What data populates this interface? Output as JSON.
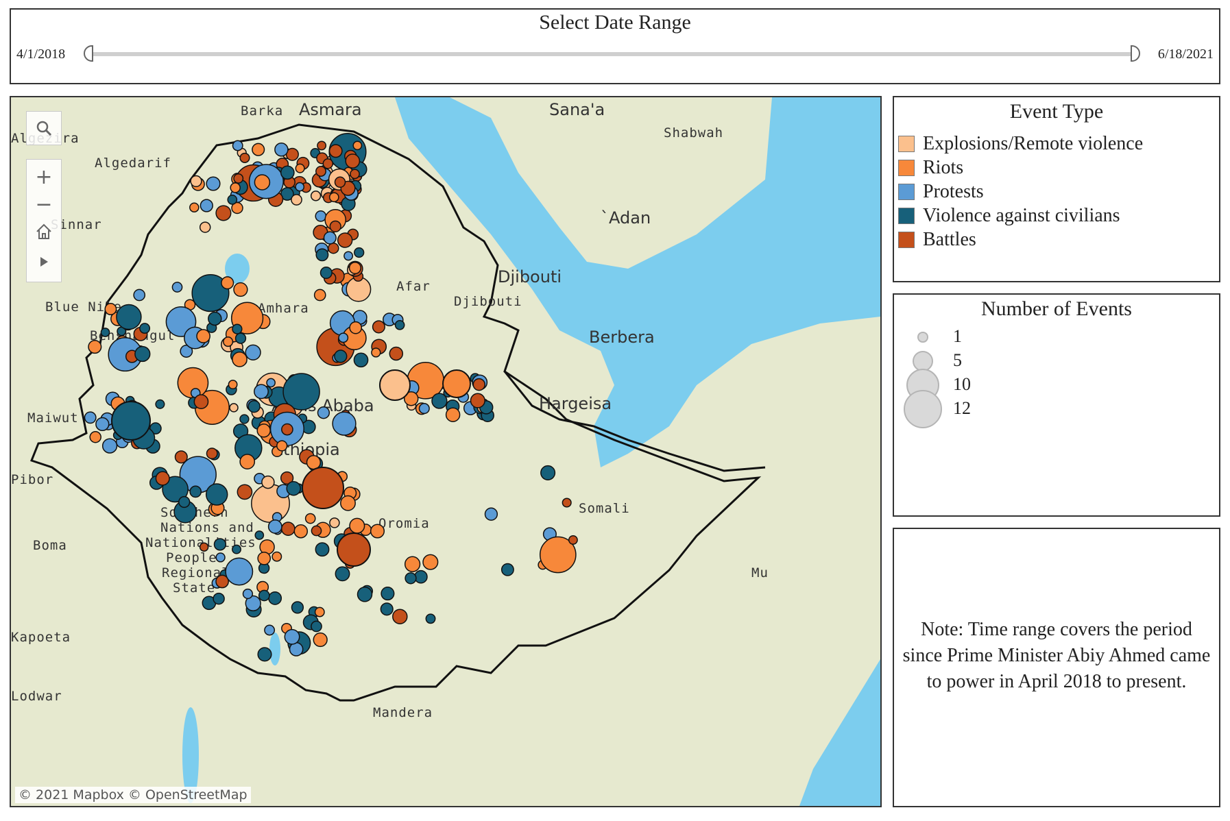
{
  "date_range": {
    "title": "Select Date Range",
    "start": "4/1/2018",
    "end": "6/18/2021"
  },
  "map": {
    "labels": {
      "barka": "Barka",
      "asmara": "Asmara",
      "sanaa": "Sana'a",
      "shabwah": "Shabwah",
      "algezira": "Algezira",
      "algedarif": "Algedarif",
      "sinnar": "Sinnar",
      "aden": "`Adan",
      "djibouti_country": "Djibouti",
      "djibouti_city": "Djibouti",
      "afar": "Afar",
      "blue_nile": "Blue Nile",
      "amhara": "Amhara",
      "benishangul": "Benshangul",
      "berbera": "Berbera",
      "hargeisa": "Hargeisa",
      "maiwut": "Maiwut",
      "addis": "Addis Ababa",
      "ethiopia": "Ethiopia",
      "pibor": "Pibor",
      "somali": "Somali",
      "snnp_1": "Southern",
      "snnp_2": "Nations and",
      "snnp_3": "Nationalities",
      "snnp_4": "Peoples",
      "snnp_5": "Regional",
      "snnp_6": "State",
      "oromia": "Oromia",
      "boma": "Boma",
      "kapoeta": "Kapoeta",
      "mandera": "Mandera",
      "mu": "Mu",
      "lodwar": "Lodwar"
    },
    "attribution": "© 2021 Mapbox  © OpenStreetMap",
    "toolbar": [
      "search-icon",
      "zoom-in-icon",
      "zoom-out-icon",
      "home-icon",
      "play-icon"
    ],
    "colors": {
      "land": "#e6e9cf",
      "water": "#7ccdee",
      "border": "#111111"
    }
  },
  "legend": {
    "title": "Event Type",
    "items": [
      {
        "label": "Explosions/Remote violence",
        "color": "#fbc08d"
      },
      {
        "label": "Riots",
        "color": "#f7883a"
      },
      {
        "label": "Protests",
        "color": "#5b9bd5"
      },
      {
        "label": "Violence against civilians",
        "color": "#17607a"
      },
      {
        "label": "Battles",
        "color": "#c4501b"
      }
    ]
  },
  "size_legend": {
    "title": "Number of Events",
    "items": [
      {
        "label": "1",
        "value": 1
      },
      {
        "label": "5",
        "value": 5
      },
      {
        "label": "10",
        "value": 10
      },
      {
        "label": "12",
        "value": 12
      }
    ]
  },
  "note": {
    "text": "Note: Time range covers the period since Prime Minister Abiy Ahmed came to power in April 2018 to present."
  }
}
